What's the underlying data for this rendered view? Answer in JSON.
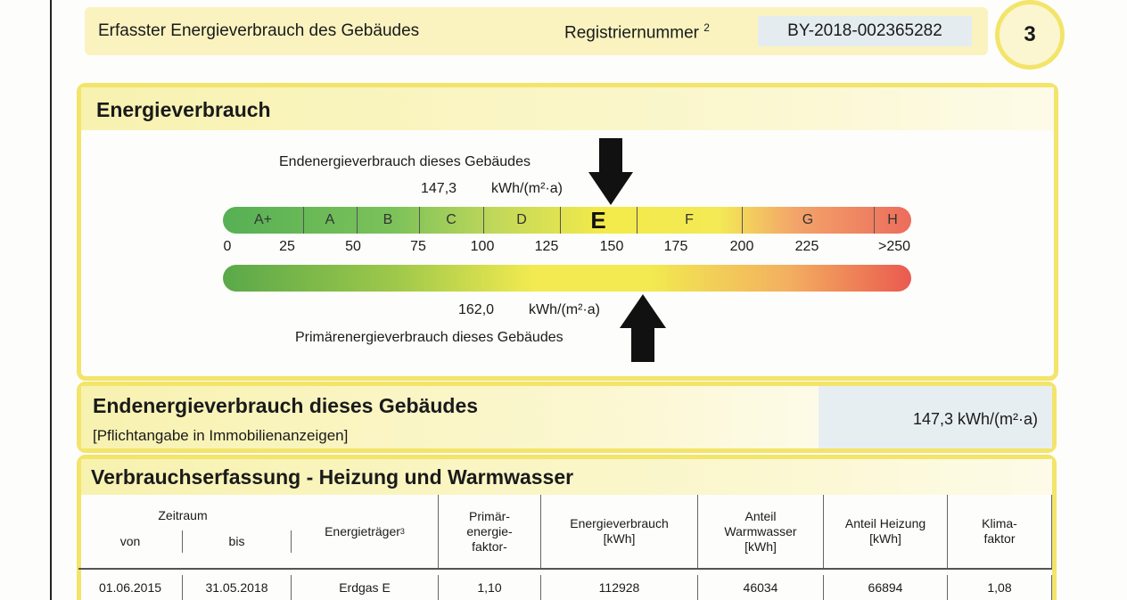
{
  "header": {
    "title": "Erfasster Energieverbrauch des Gebäudes",
    "registration_label": "Registriernummer",
    "registration_sup": "2",
    "registration_number": "BY-2018-002365282",
    "page": "3"
  },
  "energy": {
    "title": "Energieverbrauch",
    "final_label": "Endenergieverbrauch dieses Gebäudes",
    "final_value": "147,3",
    "final_unit": "kWh/(m²·a)",
    "classes": [
      "A+",
      "A",
      "B",
      "C",
      "D",
      "E",
      "F",
      "G",
      "H"
    ],
    "scale": [
      "0",
      "25",
      "50",
      "75",
      "100",
      "125",
      "150",
      "175",
      "200",
      "225",
      ">250"
    ],
    "primary_value": "162,0",
    "primary_unit": "kWh/(m²·a)",
    "primary_label": "Primärenergieverbrauch dieses Gebäudes"
  },
  "summary": {
    "title": "Endenergieverbrauch dieses Gebäudes",
    "note": "[Pflichtangabe in Immobilienanzeigen]",
    "value": "147,3 kWh/(m²·a)"
  },
  "consumption": {
    "title": "Verbrauchserfassung - Heizung und Warmwasser",
    "period": "Zeitraum",
    "columns": [
      "von",
      "bis",
      "Energieträger",
      "Primär-\nenergie-\nfaktor-",
      "Energieverbrauch\n[kWh]",
      "Anteil\nWarmwasser\n[kWh]",
      "Anteil Heizung\n[kWh]",
      "Klima-\nfaktor"
    ],
    "carrier_sup": "3",
    "rows": [
      [
        "01.06.2015",
        "31.05.2018",
        "Erdgas E",
        "1,10",
        "112928",
        "46034",
        "66894",
        "1,08"
      ]
    ]
  }
}
